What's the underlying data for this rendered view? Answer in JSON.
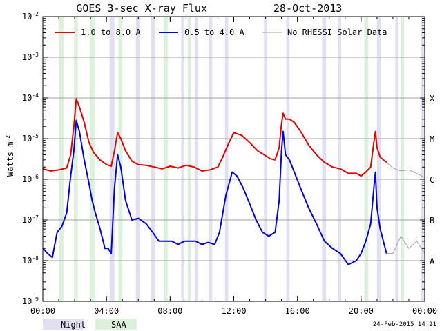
{
  "chart_data": {
    "type": "line",
    "title": "GOES 3-sec X-ray Flux",
    "date": "28-Oct-2013",
    "ylabel": "Watts m",
    "ylabel_sup": "-2",
    "yscale": "log",
    "ylim": [
      1e-09,
      0.01
    ],
    "y_ticks": [
      {
        "base": "10",
        "exp": "-9"
      },
      {
        "base": "10",
        "exp": "-8"
      },
      {
        "base": "10",
        "exp": "-7"
      },
      {
        "base": "10",
        "exp": "-6"
      },
      {
        "base": "10",
        "exp": "-5"
      },
      {
        "base": "10",
        "exp": "-4"
      },
      {
        "base": "10",
        "exp": "-3"
      },
      {
        "base": "10",
        "exp": "-2"
      }
    ],
    "xlim": [
      0,
      24
    ],
    "x_ticks": [
      "00:00",
      "04:00",
      "08:00",
      "12:00",
      "16:00",
      "20:00",
      "00:00"
    ],
    "class_labels": [
      {
        "label": "A",
        "value": 1e-08
      },
      {
        "label": "B",
        "value": 1e-07
      },
      {
        "label": "C",
        "value": 1e-06
      },
      {
        "label": "M",
        "value": 1e-05
      },
      {
        "label": "X",
        "value": 0.0001
      }
    ],
    "legend_position": "top",
    "series": [
      {
        "name": "1.0 to 8.0 A",
        "color": "#e60000",
        "points": [
          [
            0,
            1.8e-06
          ],
          [
            0.5,
            1.6e-06
          ],
          [
            1,
            1.7e-06
          ],
          [
            1.5,
            1.9e-06
          ],
          [
            1.75,
            4e-06
          ],
          [
            1.95,
            2e-05
          ],
          [
            2.1,
            9.5e-05
          ],
          [
            2.3,
            6e-05
          ],
          [
            2.6,
            2.5e-05
          ],
          [
            2.9,
            8e-06
          ],
          [
            3.2,
            4.5e-06
          ],
          [
            3.6,
            3e-06
          ],
          [
            4,
            2.3e-06
          ],
          [
            4.3,
            2.1e-06
          ],
          [
            4.5,
            5e-06
          ],
          [
            4.7,
            1.4e-05
          ],
          [
            4.9,
            1e-05
          ],
          [
            5.2,
            5e-06
          ],
          [
            5.6,
            2.8e-06
          ],
          [
            6,
            2.3e-06
          ],
          [
            6.5,
            2.2e-06
          ],
          [
            7,
            2e-06
          ],
          [
            7.5,
            1.8e-06
          ],
          [
            8,
            2.1e-06
          ],
          [
            8.5,
            1.9e-06
          ],
          [
            9,
            2.2e-06
          ],
          [
            9.5,
            2e-06
          ],
          [
            10,
            1.6e-06
          ],
          [
            10.5,
            1.7e-06
          ],
          [
            11,
            2e-06
          ],
          [
            11.3,
            3.5e-06
          ],
          [
            11.7,
            8e-06
          ],
          [
            12,
            1.4e-05
          ],
          [
            12.5,
            1.2e-05
          ],
          [
            13,
            8e-06
          ],
          [
            13.5,
            5e-06
          ],
          [
            14,
            3.8e-06
          ],
          [
            14.3,
            3.2e-06
          ],
          [
            14.6,
            3e-06
          ],
          [
            14.85,
            6e-06
          ],
          [
            15,
            2.3e-05
          ],
          [
            15.1,
            4.2e-05
          ],
          [
            15.25,
            3e-05
          ],
          [
            15.5,
            3e-05
          ],
          [
            15.8,
            2.5e-05
          ],
          [
            16.2,
            1.5e-05
          ],
          [
            16.7,
            7e-06
          ],
          [
            17.2,
            4e-06
          ],
          [
            17.7,
            2.6e-06
          ],
          [
            18.2,
            2e-06
          ],
          [
            18.7,
            1.8e-06
          ],
          [
            19.2,
            1.4e-06
          ],
          [
            19.7,
            1.4e-06
          ],
          [
            20,
            1.2e-06
          ],
          [
            20.3,
            1.5e-06
          ],
          [
            20.6,
            2e-06
          ],
          [
            20.8,
            8e-06
          ],
          [
            20.9,
            1.5e-05
          ],
          [
            21,
            6e-06
          ],
          [
            21.2,
            3.5e-06
          ],
          [
            21.6,
            2.6e-06
          ]
        ]
      },
      {
        "name": "0.5 to 4.0 A",
        "color": "#0000e6",
        "points": [
          [
            0,
            2e-08
          ],
          [
            0.3,
            1.5e-08
          ],
          [
            0.6,
            1.2e-08
          ],
          [
            0.9,
            5e-08
          ],
          [
            1.2,
            7e-08
          ],
          [
            1.5,
            1.5e-07
          ],
          [
            1.75,
            1.2e-06
          ],
          [
            1.95,
            5e-06
          ],
          [
            2.1,
            2.8e-05
          ],
          [
            2.3,
            1.5e-05
          ],
          [
            2.6,
            3e-06
          ],
          [
            2.9,
            8e-07
          ],
          [
            3.1,
            3e-07
          ],
          [
            3.3,
            1.5e-07
          ],
          [
            3.6,
            6e-08
          ],
          [
            3.9,
            2e-08
          ],
          [
            4.1,
            2e-08
          ],
          [
            4.3,
            1.5e-08
          ],
          [
            4.5,
            6e-07
          ],
          [
            4.7,
            4e-06
          ],
          [
            4.9,
            2e-06
          ],
          [
            5.2,
            3e-07
          ],
          [
            5.6,
            1e-07
          ],
          [
            6,
            1.1e-07
          ],
          [
            6.5,
            8e-08
          ],
          [
            6.9,
            5e-08
          ],
          [
            7.3,
            3e-08
          ],
          [
            7.7,
            3e-08
          ],
          [
            8.1,
            3e-08
          ],
          [
            8.5,
            2.5e-08
          ],
          [
            8.9,
            3e-08
          ],
          [
            9.3,
            3e-08
          ],
          [
            9.6,
            3e-08
          ],
          [
            10,
            2.5e-08
          ],
          [
            10.4,
            2.8e-08
          ],
          [
            10.8,
            2.5e-08
          ],
          [
            11.1,
            5e-08
          ],
          [
            11.5,
            4e-07
          ],
          [
            11.9,
            1.5e-06
          ],
          [
            12.2,
            1.2e-06
          ],
          [
            12.6,
            6e-07
          ],
          [
            13,
            2.5e-07
          ],
          [
            13.4,
            1e-07
          ],
          [
            13.8,
            5e-08
          ],
          [
            14.2,
            4e-08
          ],
          [
            14.6,
            5e-08
          ],
          [
            14.85,
            3e-07
          ],
          [
            15,
            5e-06
          ],
          [
            15.1,
            1.5e-05
          ],
          [
            15.25,
            4e-06
          ],
          [
            15.5,
            3e-06
          ],
          [
            15.8,
            1.5e-06
          ],
          [
            16.2,
            6e-07
          ],
          [
            16.7,
            2e-07
          ],
          [
            17.2,
            8e-08
          ],
          [
            17.7,
            3e-08
          ],
          [
            18.2,
            2e-08
          ],
          [
            18.7,
            1.5e-08
          ],
          [
            19.2,
            8e-09
          ],
          [
            19.7,
            1e-08
          ],
          [
            20,
            1.5e-08
          ],
          [
            20.3,
            3e-08
          ],
          [
            20.6,
            8e-08
          ],
          [
            20.8,
            6e-07
          ],
          [
            20.9,
            1.5e-06
          ],
          [
            21,
            2e-07
          ],
          [
            21.2,
            6e-08
          ],
          [
            21.6,
            1.5e-08
          ]
        ]
      },
      {
        "name": "No RHESSI Solar Data",
        "color": "#a0a0a0",
        "points": [
          [
            21.6,
            2.6e-06
          ],
          [
            22,
            1.9e-06
          ],
          [
            22.5,
            1.6e-06
          ],
          [
            23,
            1.7e-06
          ],
          [
            23.5,
            1.4e-06
          ],
          [
            24,
            1.1e-06
          ]
        ]
      }
    ],
    "gray_low_channel": [
      [
        21.6,
        1.5e-08
      ],
      [
        22,
        1.5e-08
      ],
      [
        22.5,
        4e-08
      ],
      [
        23,
        2e-08
      ],
      [
        23.5,
        3e-08
      ],
      [
        24,
        1.5e-08
      ]
    ],
    "night_intervals": [
      [
        4.2,
        4.5
      ],
      [
        5.85,
        6.1
      ],
      [
        6.8,
        7.05
      ],
      [
        8.7,
        8.9
      ],
      [
        9.55,
        9.75
      ],
      [
        10.45,
        10.65
      ],
      [
        11.45,
        11.65
      ],
      [
        13.9,
        14.1
      ],
      [
        15.3,
        15.5
      ],
      [
        17.55,
        17.8
      ],
      [
        18.55,
        18.75
      ],
      [
        21.0,
        21.25
      ],
      [
        22.15,
        22.35
      ],
      [
        23.75,
        23.95
      ]
    ],
    "saa_intervals": [
      [
        1.0,
        1.3
      ],
      [
        1.95,
        2.2
      ],
      [
        2.95,
        3.25
      ],
      [
        4.75,
        5.0
      ],
      [
        7.6,
        7.85
      ],
      [
        9.1,
        9.3
      ],
      [
        20.2,
        20.45
      ],
      [
        22.5,
        22.7
      ],
      [
        23.95,
        24.0
      ]
    ],
    "bottom_legend": {
      "night": "Night",
      "saa": "SAA"
    },
    "timestamp": "24-Feb-2015 14:21"
  },
  "colors": {
    "night": "#e0e0f2",
    "saa": "#dcf0dc",
    "grid": "#a0a0a0",
    "axis": "#000000"
  }
}
